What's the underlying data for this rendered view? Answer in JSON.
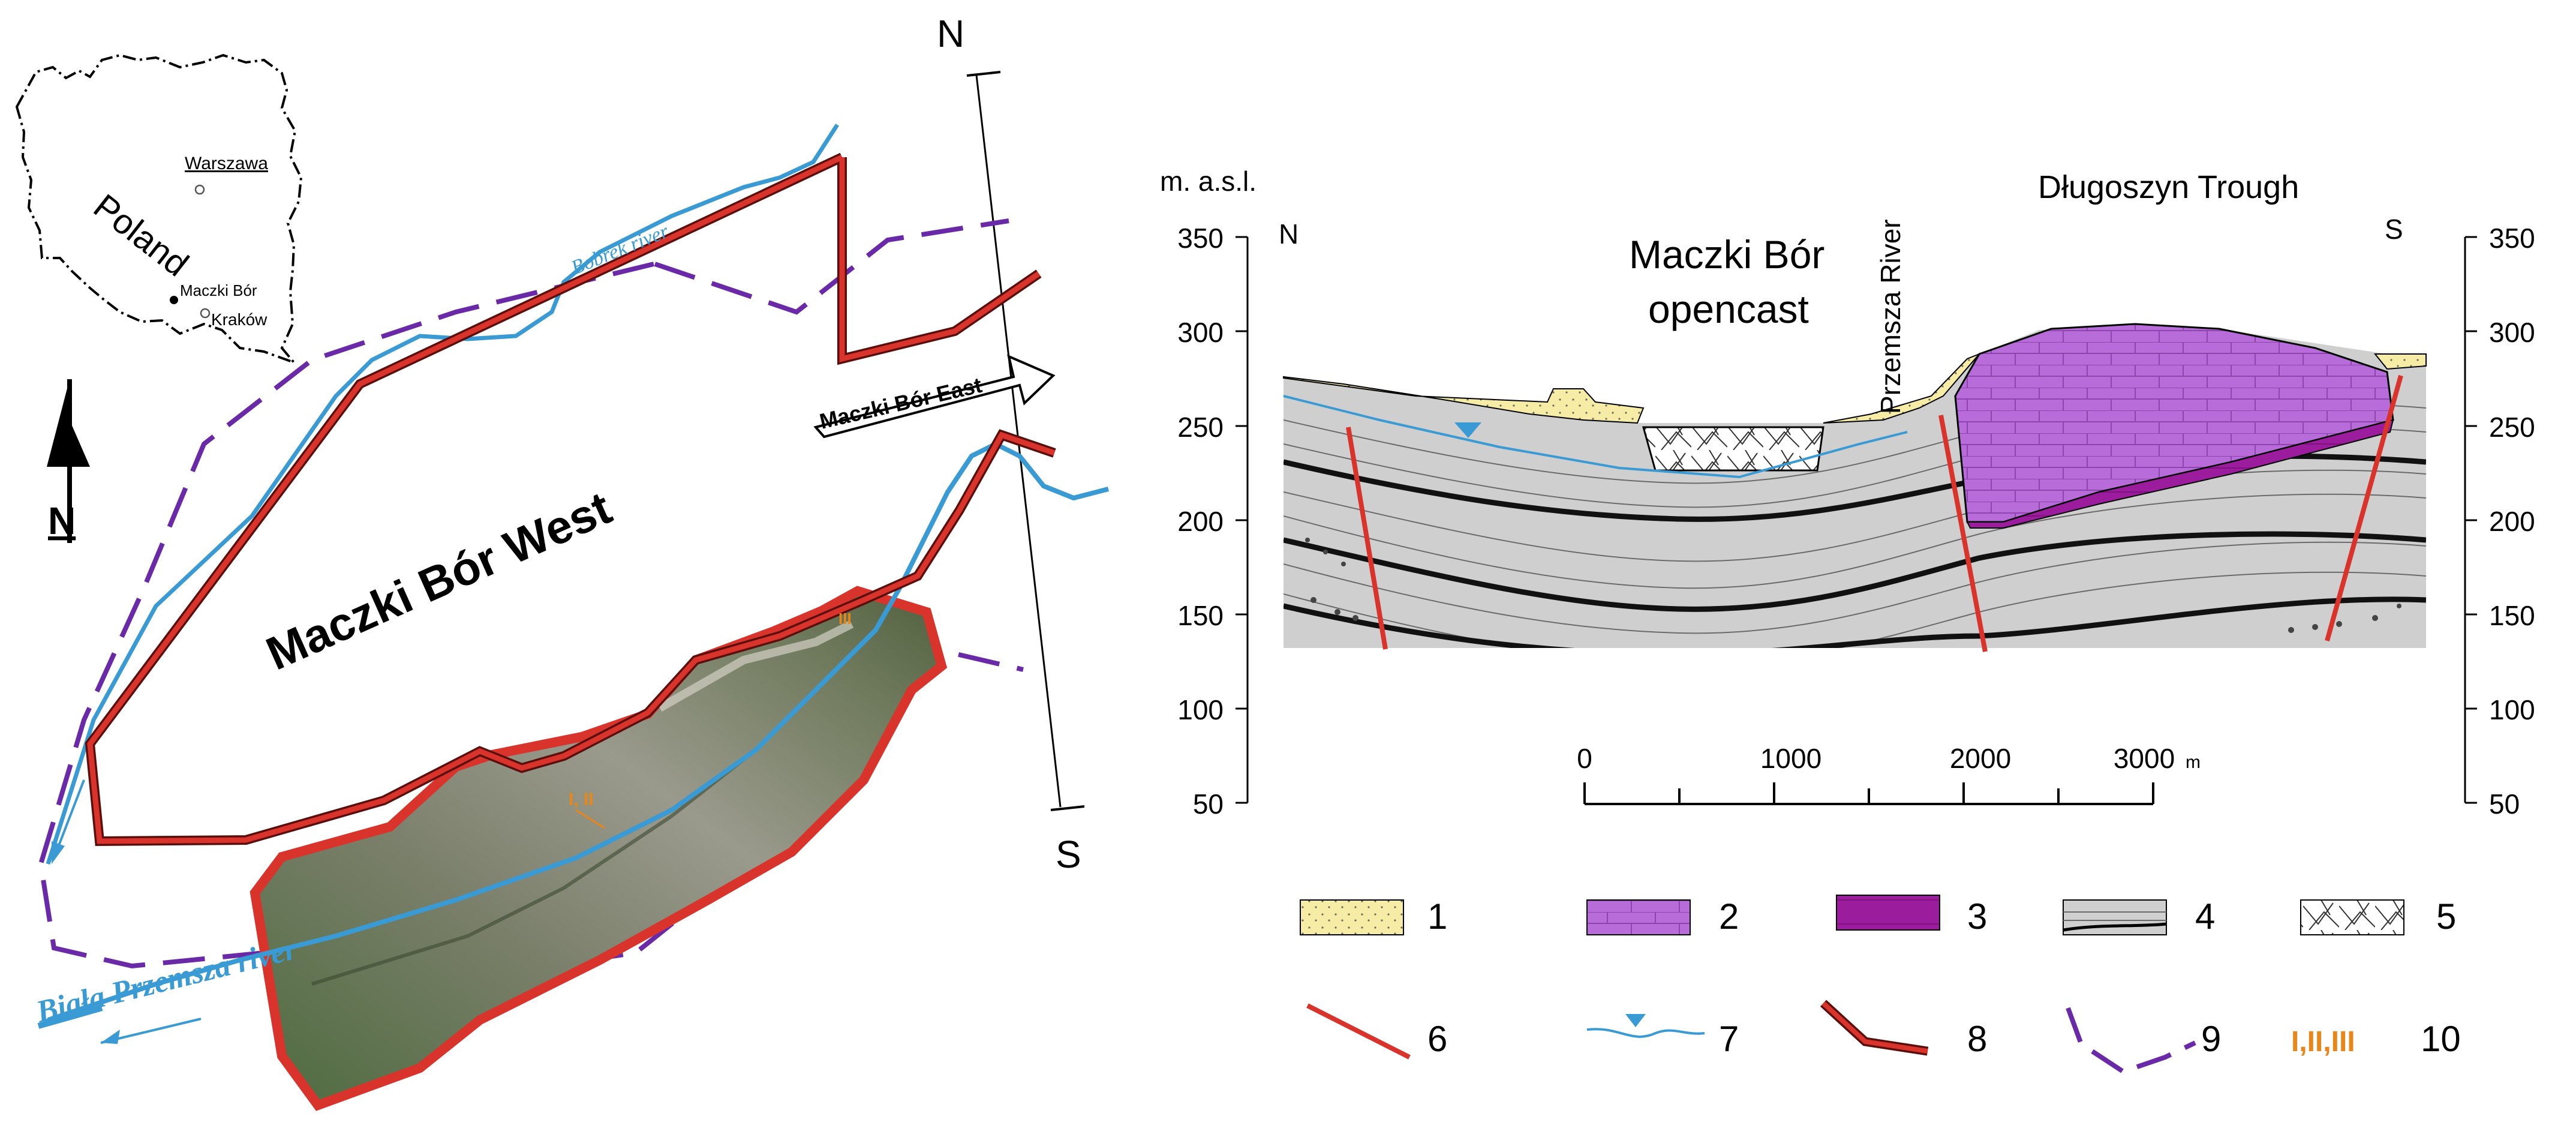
{
  "map": {
    "inset": {
      "country": "Poland",
      "capital": "Warszawa",
      "site": "Maczki Bór",
      "city": "Kraków"
    },
    "north_arrow_label": "N",
    "title": "Maczki Bór West",
    "east_label": "Maczki Bór East",
    "river_bobrek": "Bobrek river",
    "river_biala": "Biała Przemsza river",
    "section_n": "N",
    "section_s": "S",
    "pit_marker_a": "III",
    "pit_marker_b": "I, II"
  },
  "section": {
    "y_axis_label": "m. a.s.l.",
    "y_ticks": [
      "350",
      "300",
      "250",
      "200",
      "150",
      "100",
      "50"
    ],
    "n_label": "N",
    "s_label": "S",
    "opencast_line1": "Maczki Bór",
    "opencast_line2": "opencast",
    "river": "Przemsza River",
    "trough": "Długoszyn Trough",
    "scale_ticks": [
      "0",
      "1000",
      "2000",
      "3000"
    ],
    "scale_unit": "m"
  },
  "legend": {
    "items": [
      {
        "num": "1",
        "label": "1"
      },
      {
        "num": "2",
        "label": "2"
      },
      {
        "num": "3",
        "label": "3"
      },
      {
        "num": "4",
        "label": "4"
      },
      {
        "num": "5",
        "label": "5"
      },
      {
        "num": "6",
        "label": "6"
      },
      {
        "num": "7",
        "label": "7"
      },
      {
        "num": "8",
        "label": "8"
      },
      {
        "num": "9",
        "label": "9"
      },
      {
        "num": "10",
        "label": "10"
      }
    ],
    "marker_text": "I,II,III"
  },
  "colors": {
    "boundary_red": "#d8342c",
    "river_blue": "#3a9ad3",
    "dashed_purple": "#6a2aa8",
    "sand_yellow": "#f6eca6",
    "limestone_purple": "#b76cd9",
    "dark_purple": "#9c1c9e",
    "shale_gray": "#cfcfcf",
    "marker_orange": "#e8861a"
  }
}
